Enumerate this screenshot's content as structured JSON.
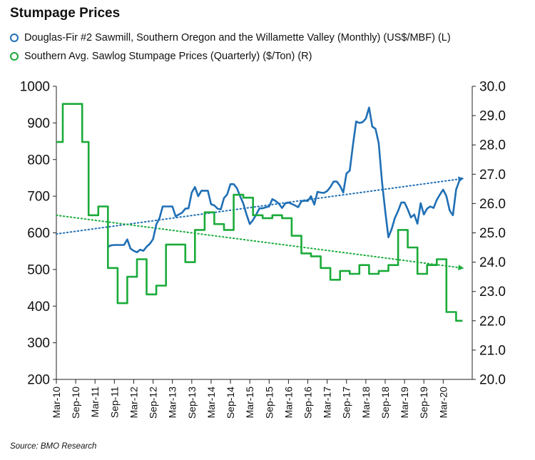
{
  "title": "Stumpage Prices",
  "source": "Source: BMO Research",
  "chart_data": {
    "type": "line",
    "title": "Stumpage Prices",
    "grid": false,
    "legend_position": "top-left",
    "x_ticks": [
      "Mar-10",
      "Sep-10",
      "Mar-11",
      "Sep-11",
      "Mar-12",
      "Sep-12",
      "Mar-13",
      "Sep-13",
      "Mar-14",
      "Sep-14",
      "Mar-15",
      "Sep-15",
      "Mar-16",
      "Sep-16",
      "Mar-17",
      "Sep-17",
      "Mar-18",
      "Sep-18",
      "Mar-19",
      "Sep-19",
      "Mar-20"
    ],
    "x_range": [
      "Mar-10",
      "Dec-20"
    ],
    "y_left": {
      "min": 200,
      "max": 1000,
      "ticks": [
        "200",
        "300",
        "400",
        "500",
        "600",
        "700",
        "800",
        "900",
        "1000"
      ]
    },
    "y_right": {
      "min": 20,
      "max": 30,
      "ticks": [
        "20.0",
        "21.0",
        "22.0",
        "23.0",
        "24.0",
        "25.0",
        "26.0",
        "27.0",
        "28.0",
        "29.0",
        "30.0"
      ]
    },
    "series": [
      {
        "name": "Douglas-Fir #2 Sawmill, Southern Oregon and the Willamette Valley (Monthly) (US$/MBF) (L)",
        "axis": "left",
        "color": "#1f6fb5",
        "style": "solid",
        "points": [
          [
            "Jul-11",
            562
          ],
          [
            "Aug-11",
            566
          ],
          [
            "Sep-11",
            567
          ],
          [
            "Oct-11",
            567
          ],
          [
            "Nov-11",
            567
          ],
          [
            "Dec-11",
            567
          ],
          [
            "Jan-12",
            582
          ],
          [
            "Feb-12",
            557
          ],
          [
            "Mar-12",
            551
          ],
          [
            "Apr-12",
            547
          ],
          [
            "May-12",
            554
          ],
          [
            "Jun-12",
            551
          ],
          [
            "Jul-12",
            562
          ],
          [
            "Aug-12",
            570
          ],
          [
            "Sep-12",
            583
          ],
          [
            "Oct-12",
            623
          ],
          [
            "Nov-12",
            640
          ],
          [
            "Dec-12",
            672
          ],
          [
            "Jan-13",
            672
          ],
          [
            "Feb-13",
            672
          ],
          [
            "Mar-13",
            672
          ],
          [
            "Apr-13",
            645
          ],
          [
            "May-13",
            650
          ],
          [
            "Jun-13",
            655
          ],
          [
            "Jul-13",
            666
          ],
          [
            "Aug-13",
            667
          ],
          [
            "Sep-13",
            710
          ],
          [
            "Oct-13",
            725
          ],
          [
            "Nov-13",
            700
          ],
          [
            "Dec-13",
            715
          ],
          [
            "Jan-14",
            715
          ],
          [
            "Feb-14",
            715
          ],
          [
            "Mar-14",
            678
          ],
          [
            "Apr-14",
            675
          ],
          [
            "May-14",
            666
          ],
          [
            "Jun-14",
            664
          ],
          [
            "Jul-14",
            695
          ],
          [
            "Aug-14",
            705
          ],
          [
            "Sep-14",
            733
          ],
          [
            "Oct-14",
            733
          ],
          [
            "Nov-14",
            722
          ],
          [
            "Dec-14",
            700
          ],
          [
            "Jan-15",
            680
          ],
          [
            "Feb-15",
            650
          ],
          [
            "Mar-15",
            624
          ],
          [
            "Apr-15",
            635
          ],
          [
            "May-15",
            650
          ],
          [
            "Jun-15",
            667
          ],
          [
            "Jul-15",
            667
          ],
          [
            "Aug-15",
            670
          ],
          [
            "Sep-15",
            672
          ],
          [
            "Oct-15",
            692
          ],
          [
            "Nov-15",
            687
          ],
          [
            "Dec-15",
            680
          ],
          [
            "Jan-16",
            668
          ],
          [
            "Feb-16",
            680
          ],
          [
            "Mar-16",
            683
          ],
          [
            "Apr-16",
            679
          ],
          [
            "May-16",
            675
          ],
          [
            "Jun-16",
            670
          ],
          [
            "Jul-16",
            686
          ],
          [
            "Aug-16",
            688
          ],
          [
            "Sep-16",
            687
          ],
          [
            "Oct-16",
            700
          ],
          [
            "Nov-16",
            677
          ],
          [
            "Dec-16",
            712
          ],
          [
            "Jan-17",
            710
          ],
          [
            "Feb-17",
            709
          ],
          [
            "Mar-17",
            714
          ],
          [
            "Apr-17",
            725
          ],
          [
            "May-17",
            740
          ],
          [
            "Jun-17",
            740
          ],
          [
            "Jul-17",
            728
          ],
          [
            "Aug-17",
            710
          ],
          [
            "Sep-17",
            762
          ],
          [
            "Oct-17",
            770
          ],
          [
            "Nov-17",
            840
          ],
          [
            "Dec-17",
            904
          ],
          [
            "Jan-18",
            900
          ],
          [
            "Feb-18",
            902
          ],
          [
            "Mar-18",
            912
          ],
          [
            "Apr-18",
            942
          ],
          [
            "May-18",
            890
          ],
          [
            "Jun-18",
            884
          ],
          [
            "Jul-18",
            845
          ],
          [
            "Aug-18",
            740
          ],
          [
            "Sep-18",
            660
          ],
          [
            "Oct-18",
            588
          ],
          [
            "Nov-18",
            610
          ],
          [
            "Dec-18",
            640
          ],
          [
            "Jan-19",
            660
          ],
          [
            "Feb-19",
            683
          ],
          [
            "Mar-19",
            683
          ],
          [
            "Apr-19",
            664
          ],
          [
            "May-19",
            642
          ],
          [
            "Jun-19",
            650
          ],
          [
            "Jul-19",
            625
          ],
          [
            "Aug-19",
            681
          ],
          [
            "Sep-19",
            650
          ],
          [
            "Oct-19",
            666
          ],
          [
            "Nov-19",
            672
          ],
          [
            "Dec-19",
            668
          ],
          [
            "Jan-20",
            690
          ],
          [
            "Feb-20",
            705
          ],
          [
            "Mar-20",
            718
          ],
          [
            "Apr-20",
            700
          ],
          [
            "May-20",
            661
          ],
          [
            "Jun-20",
            648
          ],
          [
            "Jul-20",
            718
          ],
          [
            "Aug-20",
            742
          ],
          [
            "Sep-20",
            750
          ]
        ]
      },
      {
        "name": "Southern Avg. Sawlog Stumpage Prices (Quarterly) ($/Ton) (R)",
        "axis": "right",
        "color": "#1aab3a",
        "style": "step",
        "points": [
          [
            "Mar-10",
            28.1
          ],
          [
            "May-10",
            29.4
          ],
          [
            "Aug-10",
            29.4
          ],
          [
            "Nov-10",
            28.1
          ],
          [
            "Jan-11",
            25.6
          ],
          [
            "Apr-11",
            25.9
          ],
          [
            "Jul-11",
            23.8
          ],
          [
            "Oct-11",
            22.6
          ],
          [
            "Jan-12",
            23.5
          ],
          [
            "Apr-12",
            24.1
          ],
          [
            "Jul-12",
            22.9
          ],
          [
            "Oct-12",
            23.2
          ],
          [
            "Jan-13",
            24.6
          ],
          [
            "Apr-13",
            24.6
          ],
          [
            "Jul-13",
            24.0
          ],
          [
            "Oct-13",
            25.1
          ],
          [
            "Jan-14",
            25.7
          ],
          [
            "Apr-14",
            25.3
          ],
          [
            "Jul-14",
            25.1
          ],
          [
            "Oct-14",
            26.3
          ],
          [
            "Jan-15",
            26.2
          ],
          [
            "Apr-15",
            25.6
          ],
          [
            "Jul-15",
            25.5
          ],
          [
            "Oct-15",
            25.6
          ],
          [
            "Jan-16",
            25.5
          ],
          [
            "Apr-16",
            24.9
          ],
          [
            "Jul-16",
            24.3
          ],
          [
            "Oct-16",
            24.2
          ],
          [
            "Jan-17",
            23.8
          ],
          [
            "Apr-17",
            23.4
          ],
          [
            "Jul-17",
            23.7
          ],
          [
            "Oct-17",
            23.6
          ],
          [
            "Jan-18",
            23.9
          ],
          [
            "Apr-18",
            23.6
          ],
          [
            "Jul-18",
            23.7
          ],
          [
            "Oct-18",
            23.9
          ],
          [
            "Jan-19",
            25.1
          ],
          [
            "Apr-19",
            24.5
          ],
          [
            "Jul-19",
            23.6
          ],
          [
            "Oct-19",
            23.9
          ],
          [
            "Jan-20",
            24.1
          ],
          [
            "Apr-20",
            22.3
          ],
          [
            "Jul-20",
            22.0
          ],
          [
            "Sep-20",
            22.0
          ]
        ]
      }
    ],
    "trendlines": [
      {
        "series_index": 0,
        "axis": "left",
        "color": "#1f6fb5",
        "style": "dotted",
        "arrow": true,
        "start": [
          "Mar-10",
          597
        ],
        "end": [
          "Sep-20",
          748
        ]
      },
      {
        "series_index": 1,
        "axis": "right",
        "color": "#1aab3a",
        "style": "dotted",
        "arrow": true,
        "start": [
          "Mar-10",
          25.6
        ],
        "end": [
          "Sep-20",
          23.8
        ]
      }
    ]
  }
}
